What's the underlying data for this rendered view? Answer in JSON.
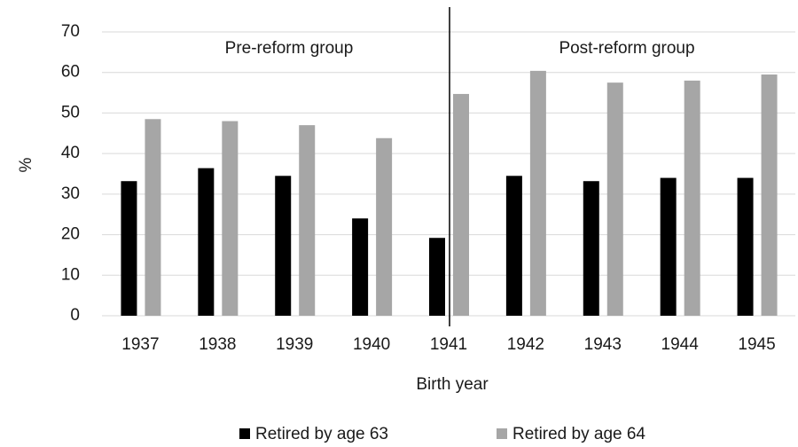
{
  "chart_data": {
    "type": "bar",
    "categories": [
      "1937",
      "1938",
      "1939",
      "1940",
      "1941",
      "1942",
      "1943",
      "1944",
      "1945"
    ],
    "series": [
      {
        "name": "Retired by age 63",
        "color": "#000000",
        "values": [
          33.2,
          36.4,
          34.5,
          24,
          19.2,
          34.5,
          33.2,
          34,
          34
        ]
      },
      {
        "name": "Retired by age 64",
        "color": "#a6a6a6",
        "values": [
          48.5,
          48,
          47,
          43.8,
          54.7,
          60.4,
          57.5,
          58,
          59.5
        ]
      }
    ],
    "ylim": [
      0,
      70
    ],
    "yticks": [
      0,
      10,
      20,
      30,
      40,
      50,
      60,
      70
    ],
    "grid": true,
    "xlabel": "Birth year",
    "ylabel": "%",
    "annotations": [
      "Pre-reform group",
      "Post-reform group"
    ],
    "legend": "bottom"
  }
}
